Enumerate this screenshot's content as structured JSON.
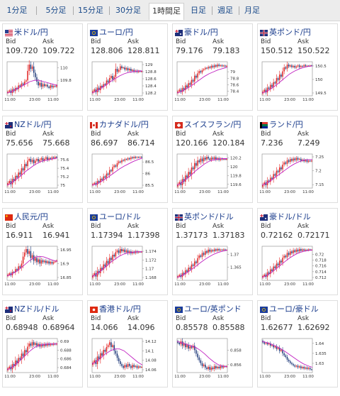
{
  "tabs": [
    "1分足",
    "5分足",
    "15分足",
    "30分足",
    "1時間足",
    "日足",
    "週足",
    "月足"
  ],
  "active_tab": 4,
  "bid_label": "Bid",
  "ask_label": "Ask",
  "colors": {
    "up": "#e02020",
    "down": "#1f3a7a",
    "ma": "#c020c0",
    "link": "#1a3c8c"
  },
  "panels": [
    {
      "pair": "米ドル/円",
      "bid": "109.720",
      "ask": "109.722",
      "flag": "us"
    },
    {
      "pair": "ユーロ/円",
      "bid": "128.806",
      "ask": "128.811",
      "flag": "eu"
    },
    {
      "pair": "豪ドル/円",
      "bid": "79.176",
      "ask": "79.183",
      "flag": "au"
    },
    {
      "pair": "英ポンド/円",
      "bid": "150.512",
      "ask": "150.522",
      "flag": "gb"
    },
    {
      "pair": "NZドル/円",
      "bid": "75.656",
      "ask": "75.668",
      "flag": "nz"
    },
    {
      "pair": "カナダドル/円",
      "bid": "86.697",
      "ask": "86.714",
      "flag": "ca"
    },
    {
      "pair": "スイスフラン/円",
      "bid": "120.166",
      "ask": "120.184",
      "flag": "ch"
    },
    {
      "pair": "ランド/円",
      "bid": "7.236",
      "ask": "7.249",
      "flag": "za"
    },
    {
      "pair": "人民元/円",
      "bid": "16.911",
      "ask": "16.941",
      "flag": "cn"
    },
    {
      "pair": "ユーロ/ドル",
      "bid": "1.17394",
      "ask": "1.17398",
      "flag": "eu"
    },
    {
      "pair": "英ポンド/ドル",
      "bid": "1.37173",
      "ask": "1.37183",
      "flag": "gb"
    },
    {
      "pair": "豪ドル/ドル",
      "bid": "0.72162",
      "ask": "0.72171",
      "flag": "au"
    },
    {
      "pair": "NZドル/ドル",
      "bid": "0.68948",
      "ask": "0.68964",
      "flag": "nz"
    },
    {
      "pair": "香港ドル/円",
      "bid": "14.066",
      "ask": "14.096",
      "flag": "hk"
    },
    {
      "pair": "ユーロ/英ポンド",
      "bid": "0.85578",
      "ask": "0.85588",
      "flag": "eu"
    },
    {
      "pair": "ユーロ/豪ドル",
      "bid": "1.62677",
      "ask": "1.62692",
      "flag": "eu"
    }
  ],
  "chart_data": [
    {
      "type": "candlestick",
      "x_ticks": [
        "11:00",
        "23:00",
        "11:00"
      ],
      "y_ticks": [
        110,
        109.8
      ],
      "closes": [
        109.62,
        109.64,
        109.6,
        109.66,
        109.63,
        109.68,
        109.66,
        109.72,
        109.7,
        109.75,
        109.73,
        109.78,
        109.8,
        109.95,
        110.05,
        109.98,
        110.02,
        109.92,
        109.85,
        109.78,
        109.72,
        109.76,
        109.7,
        109.74,
        109.71,
        109.73,
        109.7,
        109.68,
        109.72,
        109.69,
        109.71,
        109.7,
        109.72
      ],
      "ma": [
        109.6,
        109.62,
        109.66,
        109.7,
        109.74,
        109.78,
        109.8,
        109.8,
        109.78,
        109.76,
        109.74,
        109.72
      ]
    },
    {
      "type": "candlestick",
      "x_ticks": [
        "11:00",
        "23:00",
        "11:00"
      ],
      "y_ticks": [
        129,
        128.8,
        128.6,
        128.4,
        128.2
      ],
      "closes": [
        128.25,
        128.3,
        128.22,
        128.35,
        128.28,
        128.4,
        128.36,
        128.45,
        128.42,
        128.55,
        128.5,
        128.62,
        128.68,
        128.58,
        128.65,
        128.88,
        128.8,
        128.85,
        128.95,
        128.9,
        128.92,
        128.86,
        128.9,
        128.84,
        128.88,
        128.82,
        128.85,
        128.8,
        128.83,
        128.79,
        128.82,
        128.8,
        128.81
      ],
      "ma": [
        128.2,
        128.26,
        128.34,
        128.42,
        128.52,
        128.6,
        128.68,
        128.74,
        128.78,
        128.8,
        128.82,
        128.82
      ]
    },
    {
      "type": "candlestick",
      "x_ticks": [
        "11:00",
        "23:00",
        "11:00"
      ],
      "y_ticks": [
        79,
        78.8,
        78.6,
        78.4
      ],
      "closes": [
        78.4,
        78.45,
        78.38,
        78.5,
        78.44,
        78.58,
        78.52,
        78.65,
        78.6,
        78.75,
        78.7,
        78.88,
        78.82,
        78.95,
        79.02,
        78.98,
        79.05,
        79.08,
        79.12,
        79.1,
        79.15,
        79.12,
        79.18,
        79.14,
        79.2,
        79.16,
        79.22,
        79.18,
        79.2,
        79.17,
        79.19,
        79.16,
        79.18
      ],
      "ma": [
        78.35,
        78.4,
        78.48,
        78.56,
        78.66,
        78.76,
        78.86,
        78.94,
        79.0,
        79.06,
        79.1,
        79.14
      ]
    },
    {
      "type": "candlestick",
      "x_ticks": [
        "11:00",
        "23:00",
        "11:00"
      ],
      "y_ticks": [
        150.5,
        150,
        149.5
      ],
      "closes": [
        149.55,
        149.62,
        149.52,
        149.7,
        149.65,
        149.8,
        149.72,
        149.9,
        149.85,
        150.05,
        149.98,
        150.18,
        150.1,
        150.3,
        150.45,
        150.4,
        150.55,
        150.48,
        150.52,
        150.46,
        150.5,
        150.44,
        150.48,
        150.52,
        150.46,
        150.5,
        150.48,
        150.53,
        150.49,
        150.51,
        150.5,
        150.52,
        150.51
      ],
      "ma": [
        149.5,
        149.56,
        149.66,
        149.78,
        149.92,
        150.06,
        150.2,
        150.3,
        150.38,
        150.44,
        150.48,
        150.5
      ]
    },
    {
      "type": "candlestick",
      "x_ticks": [
        "11:00",
        "23:00",
        "11:00"
      ],
      "y_ticks": [
        75.6,
        75.4,
        75.2,
        75
      ],
      "closes": [
        75.05,
        75.1,
        75.02,
        75.15,
        75.1,
        75.22,
        75.18,
        75.3,
        75.25,
        75.4,
        75.35,
        75.5,
        75.45,
        75.58,
        75.62,
        75.55,
        75.6,
        75.52,
        75.58,
        75.62,
        75.56,
        75.6,
        75.64,
        75.58,
        75.62,
        75.66,
        75.6,
        75.64,
        75.62,
        75.66,
        75.64,
        75.67,
        75.66
      ],
      "ma": [
        75.0,
        75.06,
        75.14,
        75.22,
        75.32,
        75.4,
        75.48,
        75.54,
        75.58,
        75.6,
        75.62,
        75.64
      ]
    },
    {
      "type": "candlestick",
      "x_ticks": [
        "11:00",
        "23:00",
        "11:00"
      ],
      "y_ticks": [
        86.5,
        86,
        85.5
      ],
      "closes": [
        85.55,
        85.6,
        85.52,
        85.68,
        85.62,
        85.78,
        85.72,
        85.88,
        85.82,
        86.0,
        85.95,
        86.15,
        86.1,
        86.28,
        86.35,
        86.3,
        86.45,
        86.52,
        86.48,
        86.58,
        86.55,
        86.62,
        86.6,
        86.66,
        86.62,
        86.7,
        86.66,
        86.72,
        86.68,
        86.71,
        86.69,
        86.72,
        86.7
      ],
      "ma": [
        85.5,
        85.56,
        85.66,
        85.78,
        85.92,
        86.06,
        86.2,
        86.32,
        86.42,
        86.52,
        86.6,
        86.66
      ]
    },
    {
      "type": "candlestick",
      "x_ticks": [
        "11:00",
        "23:00",
        "11:00"
      ],
      "y_ticks": [
        120.2,
        120,
        119.8,
        119.6
      ],
      "closes": [
        119.6,
        119.65,
        119.58,
        119.72,
        119.66,
        119.8,
        119.75,
        119.88,
        119.82,
        119.98,
        119.94,
        120.08,
        120.02,
        120.14,
        120.1,
        120.18,
        120.12,
        120.2,
        120.16,
        120.22,
        120.18,
        120.15,
        120.2,
        120.17,
        120.21,
        120.16,
        120.19,
        120.15,
        120.18,
        120.16,
        120.17,
        120.16,
        120.17
      ],
      "ma": [
        119.58,
        119.64,
        119.72,
        119.8,
        119.9,
        119.98,
        120.06,
        120.12,
        120.15,
        120.17,
        120.18,
        120.18
      ]
    },
    {
      "type": "candlestick",
      "x_ticks": [
        "11:00",
        "23:00",
        "11:00"
      ],
      "y_ticks": [
        7.25,
        7.2,
        7.15
      ],
      "closes": [
        7.15,
        7.158,
        7.148,
        7.165,
        7.16,
        7.175,
        7.17,
        7.188,
        7.182,
        7.2,
        7.195,
        7.212,
        7.205,
        7.222,
        7.23,
        7.225,
        7.238,
        7.232,
        7.242,
        7.236,
        7.244,
        7.238,
        7.246,
        7.24,
        7.243,
        7.236,
        7.24,
        7.234,
        7.238,
        7.232,
        7.236,
        7.234,
        7.236
      ],
      "ma": [
        7.148,
        7.156,
        7.166,
        7.178,
        7.19,
        7.202,
        7.214,
        7.224,
        7.232,
        7.238,
        7.24,
        7.24
      ]
    },
    {
      "type": "candlestick",
      "x_ticks": [
        "11:00",
        "23:00",
        "11:00"
      ],
      "y_ticks": [
        16.95,
        16.9,
        16.85
      ],
      "closes": [
        16.86,
        16.865,
        16.858,
        16.87,
        16.868,
        16.88,
        16.875,
        16.89,
        16.885,
        16.9,
        16.925,
        16.94,
        16.952,
        16.935,
        16.945,
        16.92,
        16.93,
        16.91,
        16.92,
        16.905,
        16.915,
        16.9,
        16.912,
        16.905,
        16.91,
        16.902,
        16.908,
        16.9,
        16.906,
        16.9,
        16.905,
        16.908,
        16.911
      ],
      "ma": [
        16.856,
        16.862,
        16.872,
        16.884,
        16.898,
        16.912,
        16.922,
        16.926,
        16.924,
        16.918,
        16.912,
        16.908
      ]
    },
    {
      "type": "candlestick",
      "x_ticks": [
        "11:00",
        "23:00",
        "11:00"
      ],
      "y_ticks": [
        1.174,
        1.172,
        1.17,
        1.168
      ],
      "closes": [
        1.1685,
        1.169,
        1.1682,
        1.1695,
        1.169,
        1.1702,
        1.1698,
        1.171,
        1.1705,
        1.1718,
        1.1712,
        1.1725,
        1.172,
        1.1732,
        1.1728,
        1.1738,
        1.1742,
        1.1736,
        1.1745,
        1.174,
        1.1744,
        1.1738,
        1.1742,
        1.1736,
        1.174,
        1.1735,
        1.1739,
        1.1736,
        1.174,
        1.1737,
        1.1739,
        1.1738,
        1.1739
      ],
      "ma": [
        1.1682,
        1.1688,
        1.1696,
        1.1705,
        1.1714,
        1.1722,
        1.1729,
        1.1734,
        1.1737,
        1.1738,
        1.1739,
        1.1739
      ]
    },
    {
      "type": "candlestick",
      "x_ticks": [
        "11:00",
        "23:00",
        "11:00"
      ],
      "y_ticks": [
        1.37,
        1.365
      ],
      "closes": [
        1.3615,
        1.362,
        1.3612,
        1.3628,
        1.3622,
        1.3638,
        1.3632,
        1.3648,
        1.3642,
        1.366,
        1.3655,
        1.3672,
        1.3666,
        1.3685,
        1.3695,
        1.369,
        1.3705,
        1.3698,
        1.3712,
        1.3706,
        1.3718,
        1.371,
        1.3716,
        1.3712,
        1.3719,
        1.3714,
        1.372,
        1.3715,
        1.3718,
        1.3716,
        1.3719,
        1.3716,
        1.3717
      ],
      "ma": [
        1.361,
        1.3617,
        1.3627,
        1.3639,
        1.3652,
        1.3666,
        1.3679,
        1.369,
        1.37,
        1.3707,
        1.3712,
        1.3716
      ]
    },
    {
      "type": "candlestick",
      "x_ticks": [
        "11:00",
        "23:00",
        "11:00"
      ],
      "y_ticks": [
        0.72,
        0.718,
        0.716,
        0.714,
        0.712
      ],
      "closes": [
        0.7125,
        0.713,
        0.7122,
        0.7138,
        0.7132,
        0.7148,
        0.7142,
        0.7158,
        0.7152,
        0.7168,
        0.7162,
        0.7178,
        0.7172,
        0.7188,
        0.7195,
        0.719,
        0.7205,
        0.7198,
        0.721,
        0.7204,
        0.7214,
        0.7208,
        0.7216,
        0.721,
        0.7218,
        0.7212,
        0.7217,
        0.7213,
        0.7216,
        0.7214,
        0.7217,
        0.7215,
        0.7216
      ],
      "ma": [
        0.712,
        0.7127,
        0.7137,
        0.7149,
        0.7162,
        0.7175,
        0.7187,
        0.7197,
        0.7205,
        0.721,
        0.7213,
        0.7215
      ]
    },
    {
      "type": "candlestick",
      "x_ticks": [
        "11:00",
        "23:00",
        "11:00"
      ],
      "y_ticks": [
        0.69,
        0.688,
        0.686,
        0.684
      ],
      "closes": [
        0.6838,
        0.6842,
        0.6836,
        0.6848,
        0.6843,
        0.6856,
        0.685,
        0.6862,
        0.6858,
        0.6872,
        0.6866,
        0.688,
        0.6875,
        0.6888,
        0.6895,
        0.689,
        0.6898,
        0.6892,
        0.6896,
        0.689,
        0.6894,
        0.6888,
        0.6893,
        0.6889,
        0.6894,
        0.689,
        0.6895,
        0.6891,
        0.6894,
        0.6892,
        0.6895,
        0.6893,
        0.6895
      ],
      "ma": [
        0.6835,
        0.684,
        0.6848,
        0.6858,
        0.6868,
        0.6878,
        0.6886,
        0.6891,
        0.6893,
        0.6894,
        0.6894,
        0.6894
      ]
    },
    {
      "type": "candlestick",
      "x_ticks": [
        "11:00",
        "23:00",
        "11:00"
      ],
      "y_ticks": [
        14.12,
        14.1,
        14.08,
        14.06
      ],
      "closes": [
        14.075,
        14.08,
        14.072,
        14.088,
        14.082,
        14.095,
        14.09,
        14.102,
        14.098,
        14.108,
        14.112,
        14.118,
        14.108,
        14.112,
        14.1,
        14.094,
        14.085,
        14.078,
        14.072,
        14.068,
        14.064,
        14.07,
        14.066,
        14.072,
        14.068,
        14.064,
        14.07,
        14.066,
        14.068,
        14.064,
        14.067,
        14.065,
        14.066
      ],
      "ma": [
        14.072,
        14.078,
        14.086,
        14.094,
        14.1,
        14.104,
        14.104,
        14.1,
        14.092,
        14.084,
        14.076,
        14.07
      ]
    },
    {
      "type": "candlestick",
      "x_ticks": [
        "11:00",
        "23:00",
        "11:00"
      ],
      "y_ticks": [
        0.858,
        0.856
      ],
      "closes": [
        0.859,
        0.8588,
        0.8592,
        0.8586,
        0.8589,
        0.8584,
        0.8587,
        0.8582,
        0.8585,
        0.8583,
        0.8586,
        0.858,
        0.8575,
        0.857,
        0.8566,
        0.8562,
        0.8558,
        0.856,
        0.8556,
        0.8554,
        0.8557,
        0.8553,
        0.8556,
        0.8554,
        0.8558,
        0.8555,
        0.8557,
        0.8555,
        0.8558,
        0.8556,
        0.8558,
        0.8557,
        0.8558
      ],
      "ma": [
        0.8592,
        0.859,
        0.8588,
        0.8586,
        0.8584,
        0.858,
        0.8575,
        0.8569,
        0.8564,
        0.856,
        0.8558,
        0.8557
      ]
    },
    {
      "type": "candlestick",
      "x_ticks": [
        "11:00",
        "23:00",
        "11:00"
      ],
      "y_ticks": [
        1.64,
        1.635,
        1.63
      ],
      "closes": [
        1.6405,
        1.6398,
        1.6402,
        1.6395,
        1.64,
        1.6388,
        1.6392,
        1.638,
        1.6385,
        1.6372,
        1.6378,
        1.6362,
        1.6368,
        1.635,
        1.634,
        1.6332,
        1.6318,
        1.631,
        1.6302,
        1.6296,
        1.629,
        1.6284,
        1.6288,
        1.628,
        1.6285,
        1.6276,
        1.6282,
        1.6274,
        1.6279,
        1.6272,
        1.6277,
        1.627,
        1.6268
      ],
      "ma": [
        1.641,
        1.6404,
        1.6396,
        1.6386,
        1.6374,
        1.636,
        1.6344,
        1.6328,
        1.6312,
        1.6298,
        1.6288,
        1.628
      ]
    }
  ]
}
